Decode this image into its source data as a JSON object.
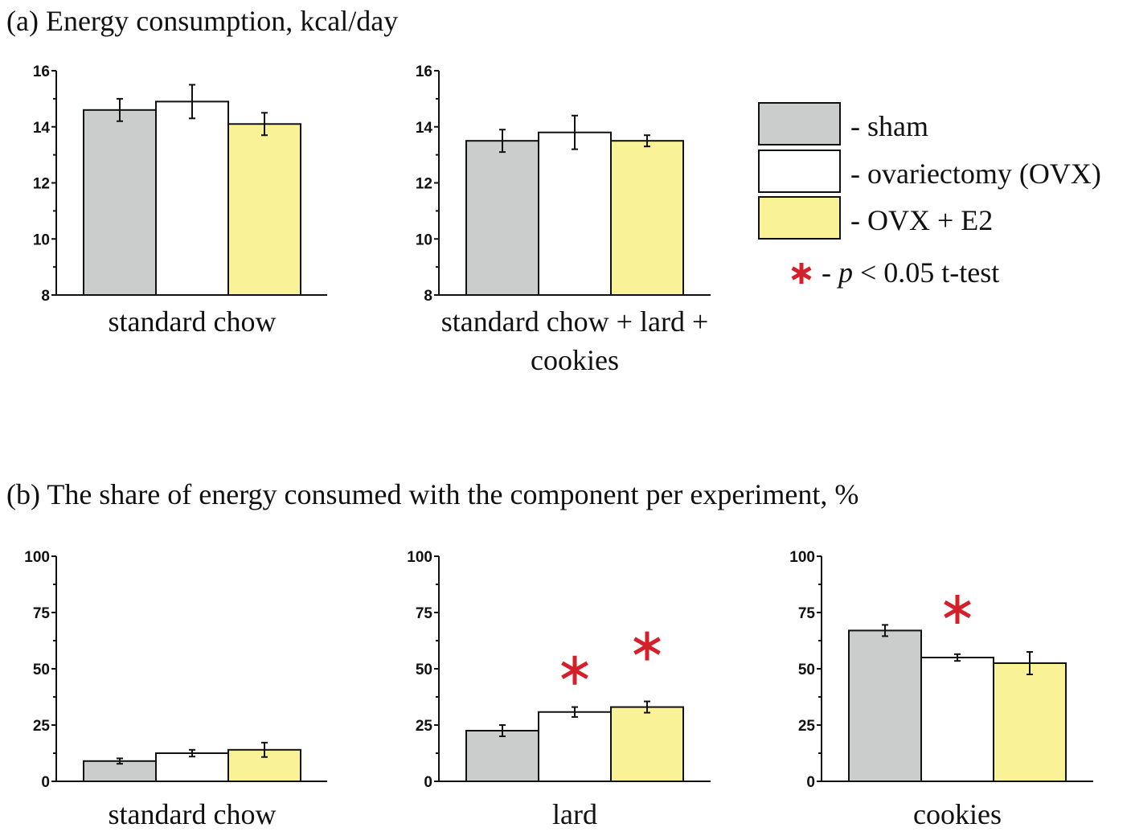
{
  "section_a_title": "(a) Energy consumption, kcal/day",
  "section_b_title": "(b) The share of energy consumed with the component per experiment, %",
  "colors": {
    "sham": "#cbcdcc",
    "ovx": "#ffffff",
    "ovx_e2": "#f9f297",
    "star": "#d4202a"
  },
  "legend": {
    "items": [
      {
        "label": "- sham",
        "color": "#cbcdcc"
      },
      {
        "label": "- ovariectomy (OVX)",
        "color": "#ffffff"
      },
      {
        "label": "- OVX + E2",
        "color": "#f9f297"
      }
    ],
    "star_prefix": "- ",
    "star_p": "p",
    "star_text": " < 0.05 t-test"
  },
  "chart_data": [
    {
      "type": "bar",
      "panel": "a",
      "category_label": [
        "standard chow"
      ],
      "ylim": [
        8,
        16
      ],
      "yticks": [
        "8",
        "10",
        "12",
        "14",
        "16"
      ],
      "series": [
        {
          "name": "sham",
          "value": 14.6,
          "error": 0.4,
          "significant": false
        },
        {
          "name": "ovariectomy (OVX)",
          "value": 14.9,
          "error": 0.6,
          "significant": false
        },
        {
          "name": "OVX + E2",
          "value": 14.1,
          "error": 0.4,
          "significant": false
        }
      ]
    },
    {
      "type": "bar",
      "panel": "a",
      "category_label": [
        "standard chow + lard +",
        "cookies"
      ],
      "ylim": [
        8,
        16
      ],
      "yticks": [
        "8",
        "10",
        "12",
        "14",
        "16"
      ],
      "series": [
        {
          "name": "sham",
          "value": 13.5,
          "error": 0.4,
          "significant": false
        },
        {
          "name": "ovariectomy (OVX)",
          "value": 13.8,
          "error": 0.6,
          "significant": false
        },
        {
          "name": "OVX + E2",
          "value": 13.5,
          "error": 0.2,
          "significant": false
        }
      ]
    },
    {
      "type": "bar",
      "panel": "b",
      "category_label": [
        "standard chow"
      ],
      "ylim": [
        0,
        100
      ],
      "yticks": [
        "0",
        "25",
        "50",
        "75",
        "100"
      ],
      "series": [
        {
          "name": "sham",
          "value": 9,
          "error": 1.2,
          "significant": false
        },
        {
          "name": "ovariectomy (OVX)",
          "value": 12.5,
          "error": 1.5,
          "significant": false
        },
        {
          "name": "OVX + E2",
          "value": 14,
          "error": 3.2,
          "significant": false
        }
      ]
    },
    {
      "type": "bar",
      "panel": "b",
      "category_label": [
        "lard"
      ],
      "ylim": [
        0,
        100
      ],
      "yticks": [
        "0",
        "25",
        "50",
        "75",
        "100"
      ],
      "series": [
        {
          "name": "sham",
          "value": 22.5,
          "error": 2.5,
          "significant": false
        },
        {
          "name": "ovariectomy (OVX)",
          "value": 30.8,
          "error": 2.2,
          "significant": true
        },
        {
          "name": "OVX + E2",
          "value": 33,
          "error": 2.5,
          "significant": true
        }
      ]
    },
    {
      "type": "bar",
      "panel": "b",
      "category_label": [
        "cookies"
      ],
      "ylim": [
        0,
        100
      ],
      "yticks": [
        "0",
        "25",
        "50",
        "75",
        "100"
      ],
      "series": [
        {
          "name": "sham",
          "value": 67,
          "error": 2.5,
          "significant": false
        },
        {
          "name": "ovariectomy (OVX)",
          "value": 55,
          "error": 1.5,
          "significant": true
        },
        {
          "name": "OVX + E2",
          "value": 52.5,
          "error": 5,
          "significant": false
        }
      ]
    }
  ]
}
